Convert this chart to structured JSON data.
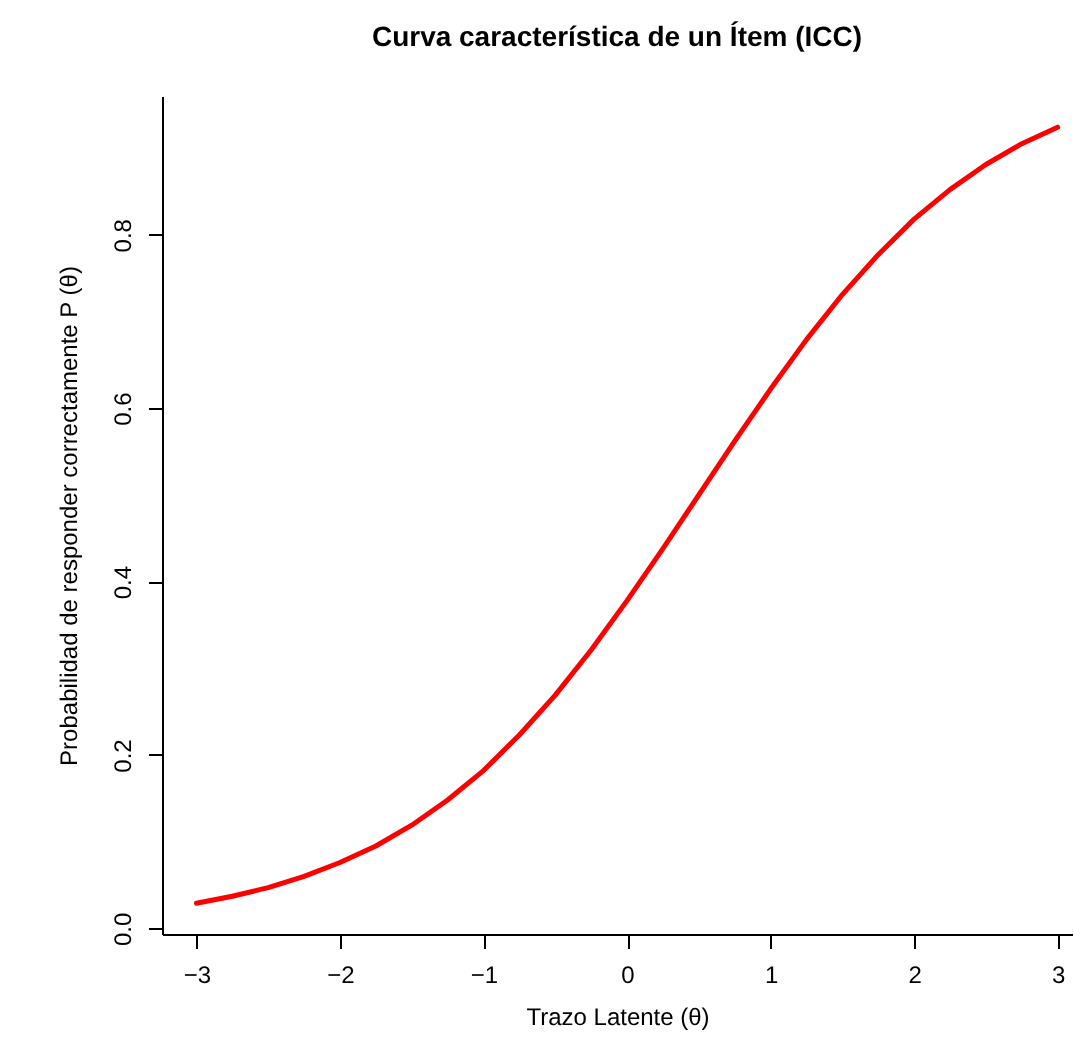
{
  "chart_data": {
    "type": "line",
    "title": "Curva característica de un Ítem (ICC)",
    "xlabel": "Trazo Latente (θ)",
    "ylabel": "Probabilidad de responder correctamente P (θ)",
    "x": [
      -3,
      -2.75,
      -2.5,
      -2.25,
      -2,
      -1.75,
      -1.5,
      -1.25,
      -1,
      -0.75,
      -0.5,
      -0.25,
      0,
      0.25,
      0.5,
      0.75,
      1,
      1.25,
      1.5,
      1.75,
      2,
      2.25,
      2.5,
      2.75,
      3
    ],
    "series": [
      {
        "color": "#ff0000",
        "values": [
          0.029,
          0.037,
          0.047,
          0.06,
          0.076,
          0.095,
          0.119,
          0.148,
          0.182,
          0.223,
          0.269,
          0.321,
          0.378,
          0.438,
          0.5,
          0.562,
          0.622,
          0.679,
          0.731,
          0.777,
          0.818,
          0.852,
          0.881,
          0.905,
          0.924
        ]
      }
    ],
    "xlim": [
      -3.24,
      3.1
    ],
    "ylim": [
      -0.0065,
      0.96
    ],
    "xticks": [
      -3,
      -2,
      -1,
      0,
      1,
      2,
      3
    ],
    "yticks": [
      {
        "value": 0,
        "label": "0.0"
      },
      0.2,
      0.4,
      0.6,
      0.8
    ],
    "grid": false,
    "line_style": "solid",
    "marker": "none"
  }
}
